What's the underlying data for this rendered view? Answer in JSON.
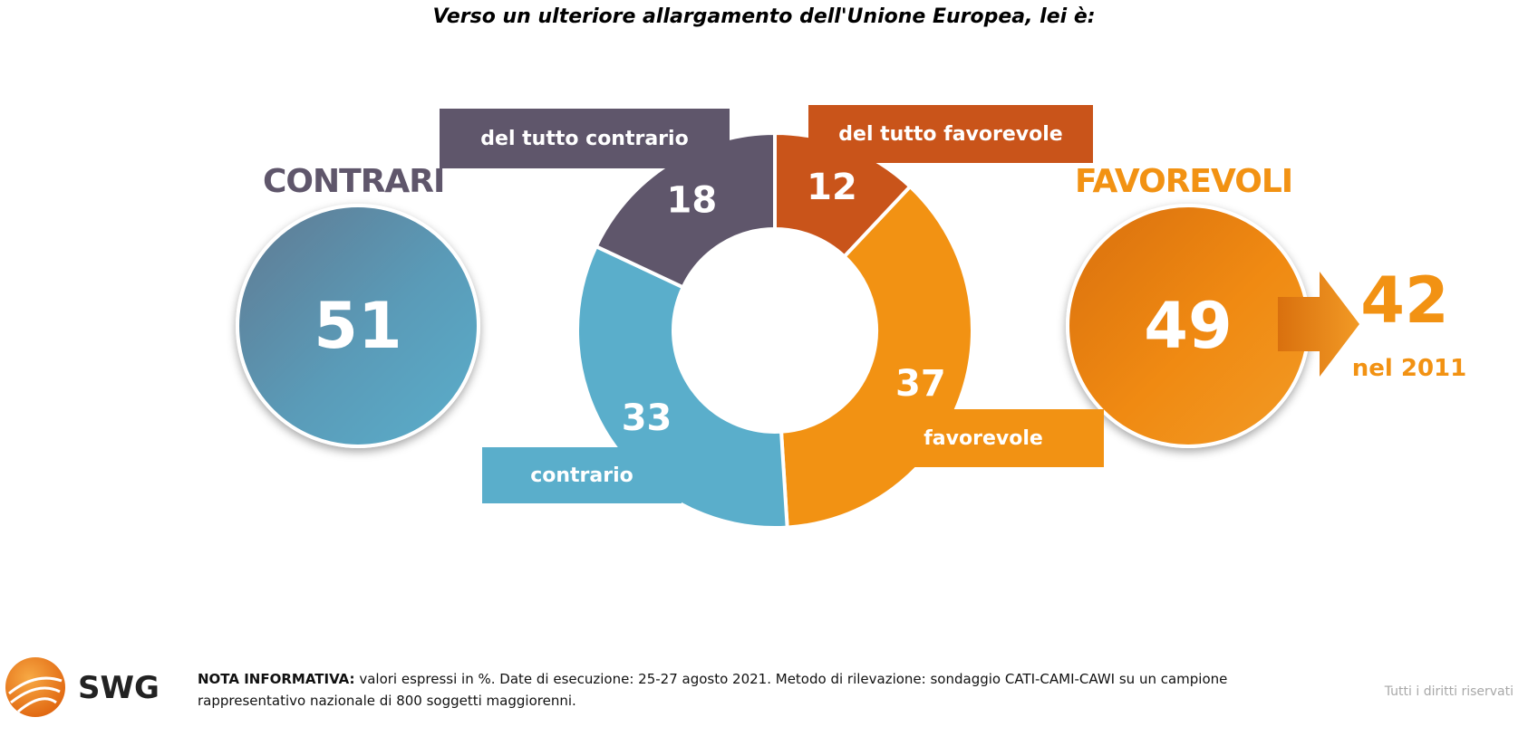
{
  "chart_data": {
    "type": "pie",
    "title": "Verso un ulteriore allargamento dell'Unione Europea, lei è:",
    "slices": [
      {
        "label": "del tutto favorevole",
        "value": 12,
        "color": "#c9541a"
      },
      {
        "label": "favorevole",
        "value": 37,
        "color": "#f29213"
      },
      {
        "label": "contrario",
        "value": 33,
        "color": "#5aaecb"
      },
      {
        "label": "del tutto contrario",
        "value": 18,
        "color": "#5f566b"
      }
    ],
    "groups": {
      "contrari": {
        "label": "CONTRARI",
        "value": "51",
        "color": "#5f566b"
      },
      "favorevoli": {
        "label": "FAVOREVOLI",
        "value": "49",
        "color": "#f29213"
      }
    },
    "comparison": {
      "value": "42",
      "label": "nel 2011"
    }
  },
  "footer": {
    "brand": "SWG",
    "note_label": "NOTA INFORMATIVA:",
    "note_text": " valori espressi in %. Date di esecuzione: 25-27 agosto 2021. Metodo di rilevazione: sondaggio CATI-CAMI-CAWI su un campione rappresentativo nazionale di 800 soggetti maggiorenni.",
    "rights": "Tutti i diritti riservati"
  }
}
